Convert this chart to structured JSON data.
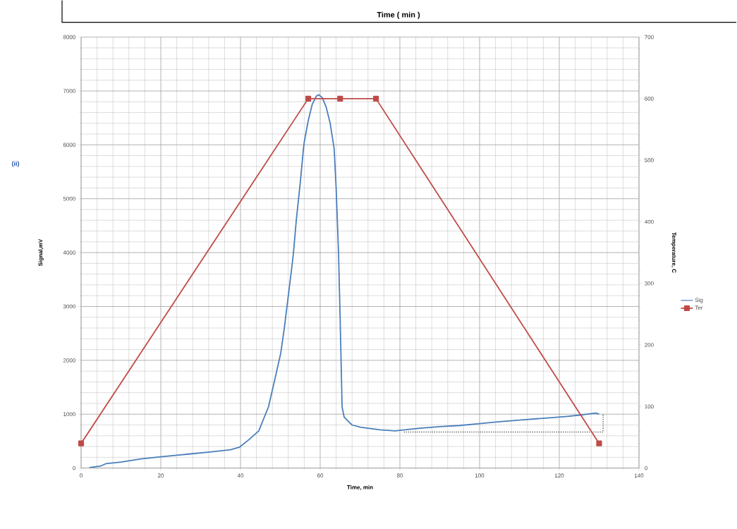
{
  "chart_data": {
    "type": "line",
    "xlabel": "Time, min",
    "ylabel": "Signal,mV",
    "y2label": "Temperature, C",
    "annotations": [
      "Time ( min )",
      "(ii)"
    ],
    "xlim": [
      0,
      140
    ],
    "xticks": [
      0,
      20,
      40,
      60,
      80,
      100,
      120,
      140
    ],
    "ylim": [
      0,
      8000
    ],
    "yticks": [
      0,
      1000,
      2000,
      3000,
      4000,
      5000,
      6000,
      7000,
      8000
    ],
    "y2lim": [
      0,
      700
    ],
    "y2ticks": [
      0,
      100,
      200,
      300,
      400,
      500,
      600,
      700
    ],
    "grid": true,
    "legend": "right",
    "series": [
      {
        "name": "Sig",
        "color": "#4a7ebb",
        "marker": "none",
        "line_style": "solid",
        "x": [
          2.1,
          5,
          6.2,
          10,
          15,
          20,
          27,
          32.7,
          37.5,
          39.8,
          42,
          44.6,
          46,
          47,
          48.1,
          50.1,
          51,
          52,
          53,
          53.3,
          54,
          55,
          55.8,
          56,
          57,
          58,
          59,
          59.6,
          60.5,
          61.5,
          62.5,
          63.5,
          64,
          64.6,
          65,
          65.3,
          65.5,
          66,
          67,
          68,
          70,
          75,
          78.8,
          85,
          90,
          95,
          99.5,
          105,
          110,
          117,
          122,
          126,
          129.2,
          130
        ],
        "values": [
          10,
          40,
          80,
          110,
          170,
          210,
          260,
          300,
          340,
          390,
          520,
          690,
          950,
          1130,
          1480,
          2130,
          2600,
          3200,
          3800,
          4000,
          4600,
          5300,
          5930,
          6050,
          6450,
          6750,
          6900,
          6930,
          6880,
          6700,
          6400,
          5930,
          5200,
          4000,
          2800,
          1800,
          1130,
          950,
          870,
          800,
          760,
          710,
          690,
          740,
          770,
          790,
          820,
          860,
          890,
          930,
          960,
          990,
          1020,
          1000
        ]
      },
      {
        "name": "Ter",
        "color": "#be4b48",
        "axis": "y2",
        "marker": "square",
        "line_style": "solid",
        "x": [
          0,
          57,
          65,
          74,
          130
        ],
        "values": [
          40,
          600,
          600,
          600,
          40
        ]
      },
      {
        "color": "#000000",
        "marker": "none",
        "line_style": "dotted",
        "x": [
          81,
          131,
          131
        ],
        "values": [
          670,
          670,
          1000
        ]
      }
    ]
  }
}
